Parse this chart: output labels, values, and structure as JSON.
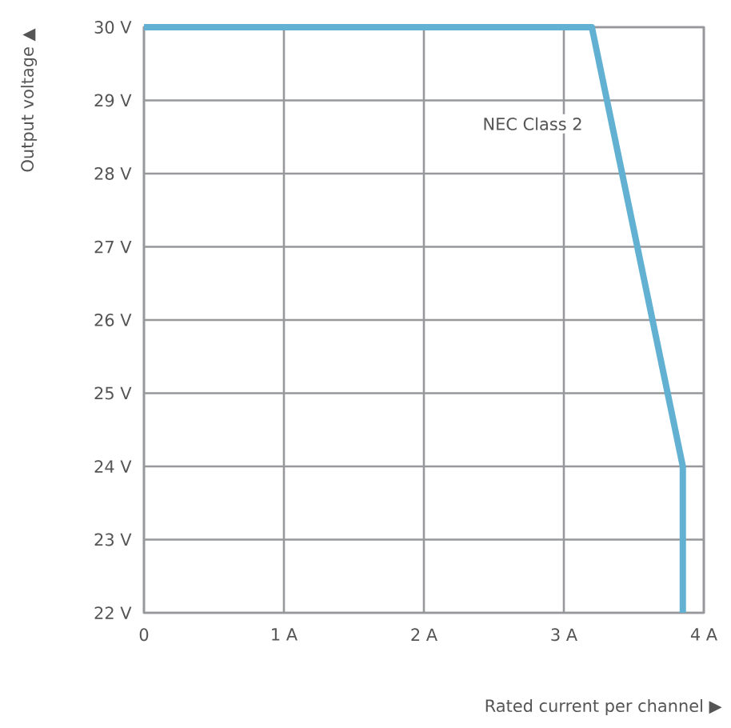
{
  "chart_data": {
    "type": "line",
    "xlabel": "Rated current per channel ▶",
    "ylabel": "Output voltage ▲",
    "x": [
      0,
      3.2,
      3.85,
      3.85
    ],
    "series": [
      {
        "color": "#62b1d2",
        "values": [
          30,
          30,
          24,
          22
        ]
      }
    ],
    "xlim": [
      0,
      4
    ],
    "ylim": [
      22,
      30
    ],
    "xticks": [
      0,
      {
        "value": 1,
        "label": "1 A"
      },
      {
        "value": 2,
        "label": "2 A"
      },
      {
        "value": 3,
        "label": "3 A"
      },
      {
        "value": 4,
        "label": "4 A"
      }
    ],
    "yticks": [
      {
        "value": 22,
        "label": "22 V"
      },
      {
        "value": 23,
        "label": "23 V"
      },
      {
        "value": 24,
        "label": "24 V"
      },
      {
        "value": 25,
        "label": "25 V"
      },
      {
        "value": 26,
        "label": "26 V"
      },
      {
        "value": 27,
        "label": "27 V"
      },
      {
        "value": 28,
        "label": "28 V"
      },
      {
        "value": 29,
        "label": "29 V"
      },
      {
        "value": 30,
        "label": "30 V"
      }
    ],
    "annotations": [
      "NEC Class 2"
    ],
    "grid": true,
    "marker": "none",
    "line_style": "solid"
  }
}
